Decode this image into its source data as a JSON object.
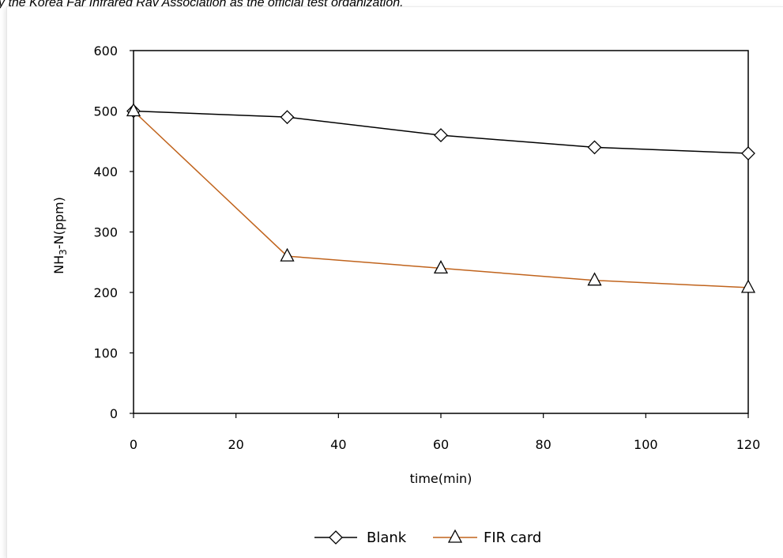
{
  "caption": "y the Korea Far Infrared Ray Association as the official test organization.",
  "colors": {
    "blank": "#000000",
    "fir": "#c0631c"
  },
  "chart_data": {
    "type": "line",
    "title": "",
    "xlabel": "time(min)",
    "ylabel_main": "NH",
    "ylabel_sub": "3",
    "ylabel_rest": "-N(ppm)",
    "xlim": [
      0,
      120
    ],
    "ylim": [
      0,
      600
    ],
    "xticks": [
      0,
      20,
      40,
      60,
      80,
      100,
      120
    ],
    "yticks": [
      0,
      100,
      200,
      300,
      400,
      500,
      600
    ],
    "grid": false,
    "legend_position": "bottom",
    "series": [
      {
        "name": "Blank",
        "marker": "diamond",
        "x": [
          0,
          30,
          60,
          90,
          120
        ],
        "values": [
          500,
          490,
          460,
          440,
          430
        ]
      },
      {
        "name": "FIR card",
        "marker": "triangle",
        "x": [
          0,
          30,
          60,
          90,
          120
        ],
        "values": [
          500,
          260,
          240,
          220,
          208
        ]
      }
    ]
  }
}
